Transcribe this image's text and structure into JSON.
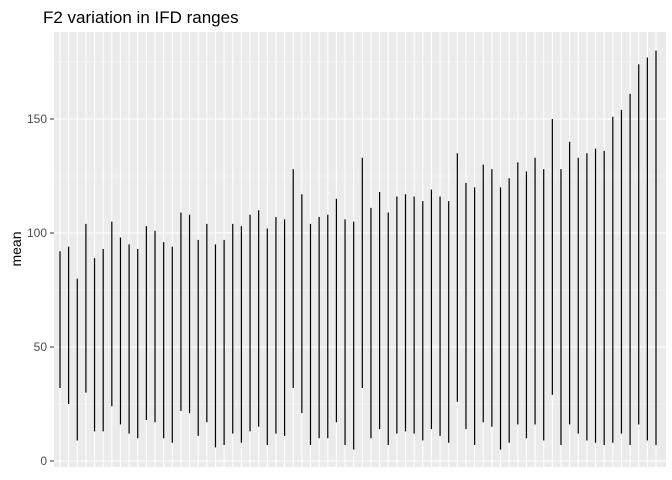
{
  "chart_data": {
    "type": "range-bar",
    "title": "F2 variation in IFD ranges",
    "xlabel": "",
    "ylabel": "mean",
    "ylim": [
      0,
      190
    ],
    "yticks": [
      0,
      50,
      100,
      150
    ],
    "grid": true,
    "legend": "none",
    "colors": {
      "panel": "#ebebeb",
      "grid_major": "#ffffff",
      "grid_minor": "#f5f5f5",
      "segment": "#000000",
      "tick_label": "#4d4d4d"
    },
    "ranges": [
      [
        32,
        92
      ],
      [
        25,
        94
      ],
      [
        9,
        80
      ],
      [
        30,
        104
      ],
      [
        13,
        89
      ],
      [
        13,
        93
      ],
      [
        24,
        105
      ],
      [
        16,
        98
      ],
      [
        12,
        95
      ],
      [
        10,
        93
      ],
      [
        18,
        103
      ],
      [
        17,
        101
      ],
      [
        10,
        96
      ],
      [
        8,
        94
      ],
      [
        22,
        109
      ],
      [
        21,
        108
      ],
      [
        11,
        97
      ],
      [
        17,
        104
      ],
      [
        6,
        95
      ],
      [
        7,
        97
      ],
      [
        12,
        104
      ],
      [
        8,
        103
      ],
      [
        13,
        108
      ],
      [
        15,
        110
      ],
      [
        7,
        102
      ],
      [
        12,
        107
      ],
      [
        11,
        106
      ],
      [
        32,
        128
      ],
      [
        21,
        117
      ],
      [
        7,
        104
      ],
      [
        10,
        107
      ],
      [
        10,
        108
      ],
      [
        17,
        115
      ],
      [
        7,
        106
      ],
      [
        5,
        105
      ],
      [
        32,
        133
      ],
      [
        10,
        111
      ],
      [
        14,
        118
      ],
      [
        7,
        109
      ],
      [
        12,
        116
      ],
      [
        13,
        117
      ],
      [
        12,
        116
      ],
      [
        9,
        114
      ],
      [
        14,
        119
      ],
      [
        11,
        116
      ],
      [
        8,
        114
      ],
      [
        26,
        135
      ],
      [
        14,
        122
      ],
      [
        7,
        120
      ],
      [
        17,
        130
      ],
      [
        15,
        128
      ],
      [
        5,
        120
      ],
      [
        8,
        124
      ],
      [
        16,
        131
      ],
      [
        10,
        127
      ],
      [
        16,
        133
      ],
      [
        9,
        128
      ],
      [
        29,
        150
      ],
      [
        7,
        128
      ],
      [
        16,
        140
      ],
      [
        12,
        133
      ],
      [
        9,
        135
      ],
      [
        8,
        137
      ],
      [
        7,
        136
      ],
      [
        8,
        151
      ],
      [
        12,
        154
      ],
      [
        7,
        161
      ],
      [
        16,
        174
      ],
      [
        9,
        177
      ],
      [
        7,
        180
      ]
    ]
  }
}
